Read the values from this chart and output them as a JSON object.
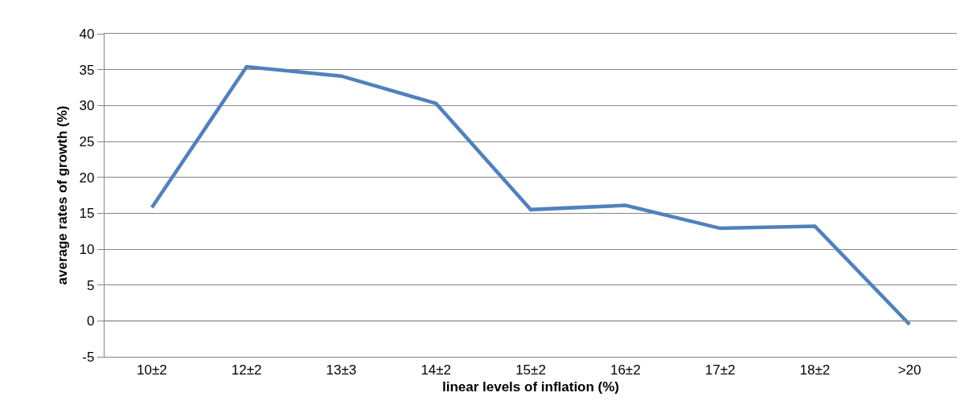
{
  "chart_data": {
    "type": "line",
    "xlabel": "linear levels of inflation (%)",
    "ylabel": "average rates of growth (%)",
    "categories": [
      "10±2",
      "12±2",
      "13±3",
      "14±2",
      "15±2",
      "16±2",
      "17±2",
      "18±2",
      ">20"
    ],
    "series": [
      {
        "color": "#4f81bd",
        "values": [
          15.8,
          35.4,
          34.1,
          30.3,
          15.5,
          16.1,
          12.9,
          13.2,
          -0.5
        ]
      }
    ],
    "ylim": [
      -5,
      40
    ],
    "yticks": [
      -5,
      0,
      5,
      10,
      15,
      20,
      25,
      30,
      35,
      40
    ],
    "grid": "y",
    "marker": "none",
    "line_style": "solid"
  }
}
